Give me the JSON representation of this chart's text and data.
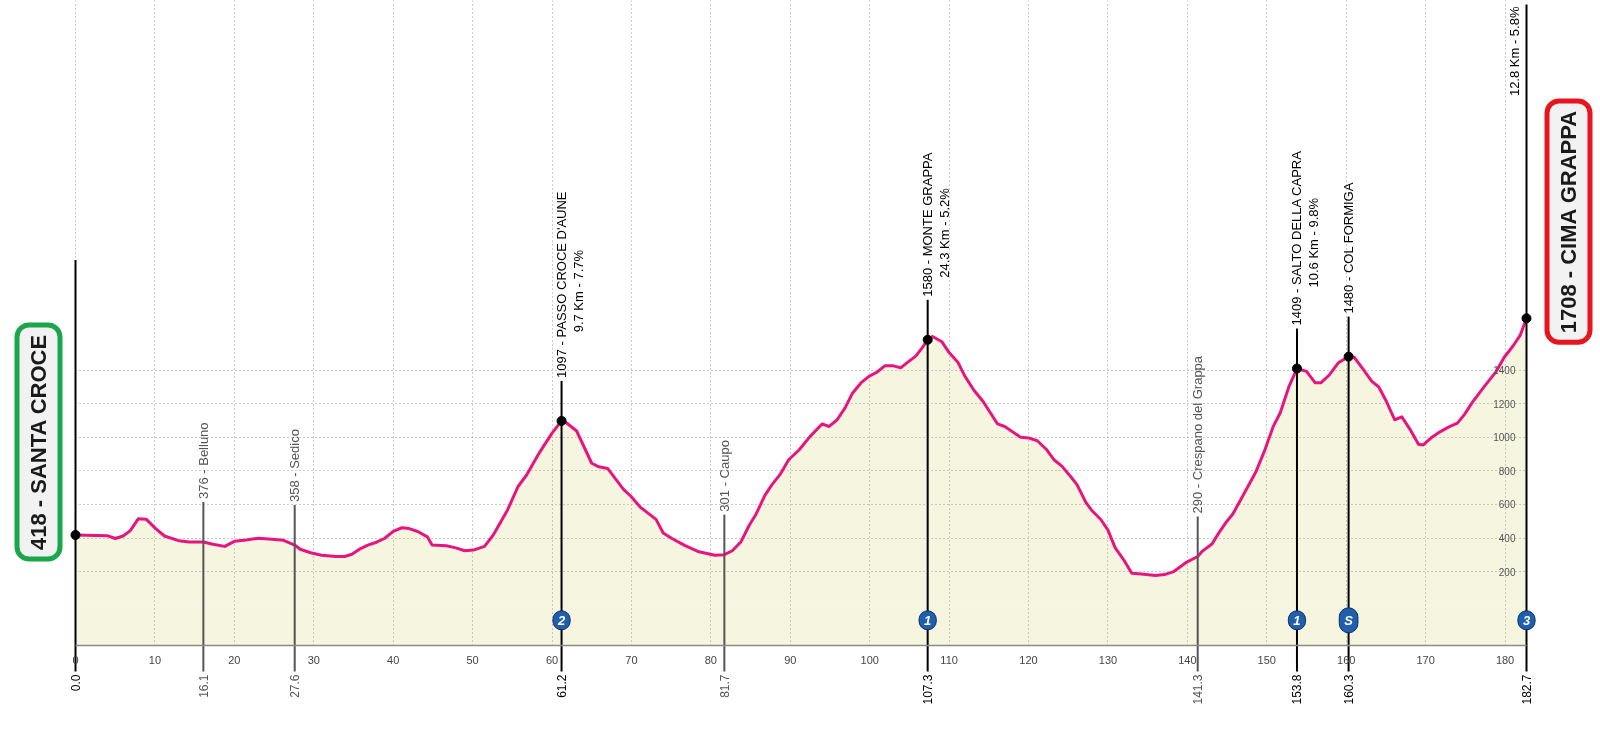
{
  "chart_data": {
    "type": "area",
    "xlim": [
      0,
      182.7
    ],
    "xticks": [
      0,
      10,
      20,
      30,
      40,
      50,
      60,
      70,
      80,
      90,
      100,
      110,
      120,
      130,
      140,
      150,
      160,
      170,
      180
    ],
    "ylim": [
      -240,
      3600
    ],
    "yticks": [
      200,
      400,
      600,
      800,
      1000,
      1200,
      1400
    ],
    "grid": true,
    "bands": [
      {
        "axis": "y",
        "from": -240,
        "to": 0,
        "color": "#f5f5e0"
      }
    ],
    "series": [
      {
        "color": "#f5f5e0",
        "x": [
          0,
          4.0,
          5.0,
          6.0,
          6.9,
          7.9,
          8.9,
          10.1,
          11.2,
          13.0,
          14.3,
          16.1,
          17.3,
          18.8,
          20.0,
          21.5,
          23.1,
          24.7,
          26.2,
          27.6,
          28.3,
          29.6,
          31.0,
          32.8,
          33.9,
          34.8,
          35.9,
          36.8,
          37.9,
          38.9,
          40.0,
          41.1,
          42.0,
          43.1,
          44.3,
          44.9,
          46.7,
          47.9,
          49.0,
          50.1,
          51.5,
          52.6,
          54.4,
          55.7,
          56.8,
          58.4,
          60.0,
          61.2,
          61.8,
          63.1,
          65.0,
          65.9,
          67.0,
          69.0,
          69.9,
          71.1,
          73.1,
          74.0,
          75.1,
          76.7,
          78.5,
          80.5,
          81.7,
          82.7,
          83.8,
          84.8,
          85.7,
          86.8,
          87.7,
          88.7,
          89.8,
          91.1,
          92.5,
          94.0,
          94.9,
          95.9,
          96.9,
          97.8,
          98.9,
          99.9,
          100.9,
          101.9,
          103.0,
          103.9,
          104.8,
          105.8,
          106.6,
          107.3,
          107.9,
          109.1,
          110.0,
          111.1,
          112.0,
          113.1,
          114.3,
          116.1,
          117.0,
          119.0,
          120.0,
          121.1,
          122.2,
          123.2,
          124.2,
          125.4,
          126.1,
          127.2,
          128.0,
          129.1,
          130.0,
          130.9,
          132.0,
          133.0,
          134.2,
          136.0,
          137.1,
          138.2,
          139.8,
          141.3,
          141.9,
          143.1,
          143.9,
          144.8,
          145.7,
          146.8,
          148.6,
          149.7,
          150.8,
          151.7,
          152.8,
          153.8,
          155.0,
          156.1,
          156.8,
          157.9,
          159.0,
          160.3,
          161.0,
          162.1,
          163.2,
          164.1,
          165.0,
          166.1,
          167.0,
          168.1,
          169.1,
          169.7,
          170.8,
          171.8,
          173.0,
          174.0,
          174.9,
          175.9,
          177.4,
          178.8,
          179.9,
          181.0,
          181.9,
          182.7
        ],
        "values": [
          418,
          414,
          397,
          412,
          444,
          514,
          512,
          456,
          412,
          384,
          376,
          376,
          363,
          350,
          380,
          388,
          399,
          392,
          386,
          358,
          333,
          312,
          297,
          290,
          290,
          303,
          337,
          358,
          375,
          397,
          439,
          461,
          456,
          439,
          407,
          358,
          354,
          341,
          324,
          328,
          350,
          418,
          567,
          705,
          775,
          907,
          1024,
          1097,
          1086,
          1037,
          845,
          824,
          814,
          690,
          650,
          584,
          511,
          430,
          397,
          356,
          318,
          297,
          301,
          324,
          378,
          473,
          543,
          654,
          718,
          777,
          866,
          924,
          1005,
          1079,
          1064,
          1104,
          1175,
          1260,
          1323,
          1362,
          1387,
          1425,
          1425,
          1413,
          1447,
          1483,
          1532,
          1580,
          1600,
          1568,
          1504,
          1447,
          1362,
          1281,
          1211,
          1079,
          1064,
          1000,
          996,
          979,
          930,
          866,
          828,
          760,
          718,
          614,
          562,
          510,
          447,
          343,
          269,
          190,
          186,
          177,
          182,
          198,
          253,
          290,
          322,
          364,
          426,
          489,
          541,
          635,
          791,
          917,
          1063,
          1146,
          1303,
          1409,
          1392,
          1324,
          1324,
          1372,
          1443,
          1480,
          1476,
          1407,
          1334,
          1299,
          1219,
          1104,
          1121,
          1042,
          958,
          954,
          1000,
          1032,
          1063,
          1084,
          1136,
          1209,
          1303,
          1386,
          1476,
          1543,
          1606,
          1708
        ]
      },
      {
        "type": "scatter",
        "color": "#000000",
        "marker": "circle",
        "x": [
          0,
          61.2,
          107.3,
          153.8,
          160.3,
          182.7
        ],
        "values": [
          418,
          1097,
          1580,
          1409,
          1480,
          1708
        ]
      }
    ],
    "ref_lines": [
      {
        "axis": "x",
        "value": 0.0,
        "label": "0.0",
        "color": "#000000"
      },
      {
        "axis": "x",
        "value": 16.1,
        "label": "16.1",
        "color": "#555555"
      },
      {
        "axis": "x",
        "value": 27.6,
        "label": "27.6",
        "color": "#555555"
      },
      {
        "axis": "x",
        "value": 61.2,
        "label": "61.2",
        "color": "#000000"
      },
      {
        "axis": "x",
        "value": 81.7,
        "label": "81.7",
        "color": "#555555"
      },
      {
        "axis": "x",
        "value": 107.3,
        "label": "107.3",
        "color": "#000000"
      },
      {
        "axis": "x",
        "value": 141.3,
        "label": "141.3",
        "color": "#555555"
      },
      {
        "axis": "x",
        "value": 153.8,
        "label": "153.8",
        "color": "#000000"
      },
      {
        "axis": "x",
        "value": 160.3,
        "label": "160.3",
        "color": "#000000"
      },
      {
        "axis": "x",
        "value": 182.7,
        "label": "182.7",
        "color": "#000000"
      }
    ],
    "annotations": [
      "12.8 Km - 5.8%",
      {
        "text": "418 - SANTA CROCE",
        "x": 0,
        "y": 418
      },
      {
        "text": "1708 - CIMA GRAPPA",
        "x": 182.7,
        "y": 1708
      },
      {
        "text": "376 - Belluno",
        "x": 16.1,
        "y": 376
      },
      {
        "text": "358 - Sedico",
        "x": 27.6,
        "y": 358
      },
      {
        "text": "1097 - PASSO CROCE D'AUNE\n9.7 Km - 7.7%",
        "x": 61.2,
        "y": 1097
      },
      {
        "text": "301 - Caupo",
        "x": 81.7,
        "y": 301
      },
      {
        "text": "1580 - MONTE GRAPPA\n24.3 Km - 5.2%",
        "x": 107.3,
        "y": 1580
      },
      {
        "text": "290 - Crespano del Grappa",
        "x": 141.3,
        "y": 290
      },
      {
        "text": "1409 - SALTO DELLA CAPRA\n10.6 Km - 9.8%",
        "x": 153.8,
        "y": 1409
      },
      {
        "text": "1480 - COL FORMIGA",
        "x": 160.3,
        "y": 1480
      },
      {
        "text": "2",
        "x": 61.2,
        "y": -90
      },
      {
        "text": "1",
        "x": 107.3,
        "y": -90
      },
      {
        "text": "1",
        "x": 153.8,
        "y": -90
      },
      {
        "text": "S",
        "x": 160.3,
        "y": -90
      },
      {
        "text": "3",
        "x": 182.7,
        "y": -90
      }
    ]
  }
}
